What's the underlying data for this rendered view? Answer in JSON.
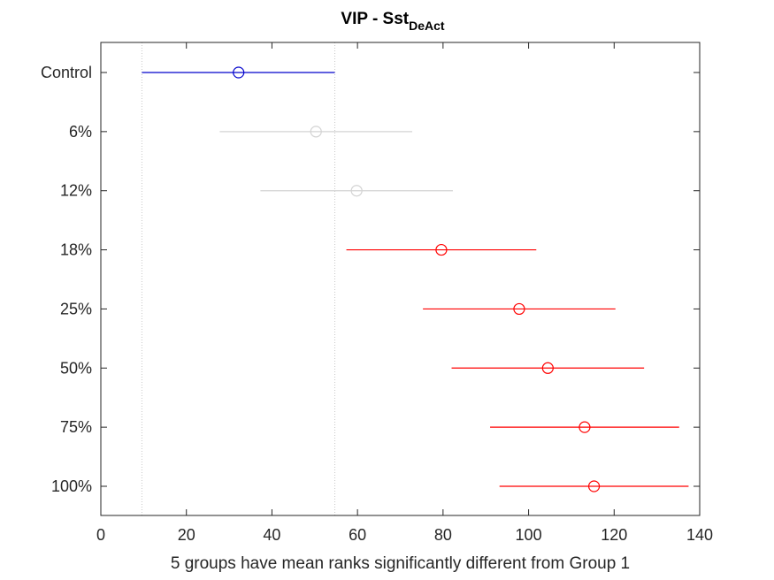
{
  "chart_data": {
    "type": "scatter",
    "title": "VIP - Sst",
    "title_subscript": "DeAct",
    "xlabel": "5 groups have mean ranks significantly different from Group 1",
    "ylabel": "",
    "xlim": [
      0,
      140
    ],
    "xticks": [
      0,
      20,
      40,
      60,
      80,
      100,
      120,
      140
    ],
    "grid": false,
    "reference_lines_x": [
      9.6,
      54.7
    ],
    "colors": {
      "reference": "#0000cc",
      "not_significant": "#d3d3d3",
      "significant": "#ff0000"
    },
    "groups": [
      {
        "label": "Control",
        "mean": 32.2,
        "lower": 9.6,
        "upper": 54.7,
        "status": "reference"
      },
      {
        "label": "6%",
        "mean": 50.3,
        "lower": 27.8,
        "upper": 72.8,
        "status": "not_significant"
      },
      {
        "label": "12%",
        "mean": 59.8,
        "lower": 37.3,
        "upper": 82.3,
        "status": "not_significant"
      },
      {
        "label": "18%",
        "mean": 79.6,
        "lower": 57.4,
        "upper": 101.8,
        "status": "significant"
      },
      {
        "label": "25%",
        "mean": 97.8,
        "lower": 75.3,
        "upper": 120.3,
        "status": "significant"
      },
      {
        "label": "50%",
        "mean": 104.5,
        "lower": 82.0,
        "upper": 127.0,
        "status": "significant"
      },
      {
        "label": "75%",
        "mean": 113.1,
        "lower": 91.0,
        "upper": 135.2,
        "status": "significant"
      },
      {
        "label": "100%",
        "mean": 115.3,
        "lower": 93.2,
        "upper": 137.4,
        "status": "significant"
      }
    ]
  }
}
